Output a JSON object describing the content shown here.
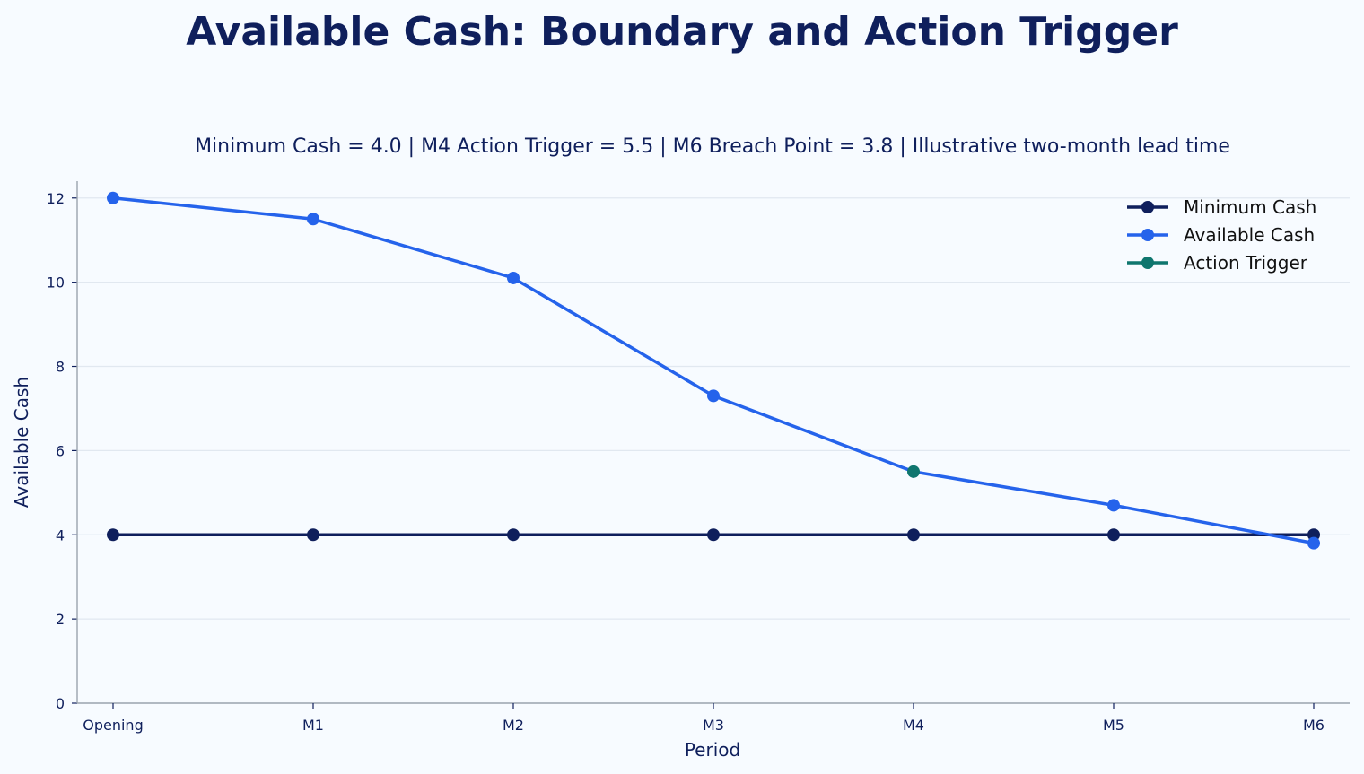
{
  "chart_data": {
    "type": "line",
    "title": "Available Cash: Boundary and Action Trigger",
    "subtitle": "Minimum Cash = 4.0 | M4 Action Trigger = 5.5 | M6 Breach Point = 3.8 | Illustrative two-month lead time",
    "xlabel": "Period",
    "ylabel": "Available Cash",
    "categories": [
      "Opening",
      "M1",
      "M2",
      "M3",
      "M4",
      "M5",
      "M6"
    ],
    "ylim": [
      0,
      12.4
    ],
    "yticks": [
      0,
      2,
      4,
      6,
      8,
      10,
      12
    ],
    "ytick_labels": [
      "0",
      "2",
      "4",
      "6",
      "8",
      "10",
      "12"
    ],
    "grid": "horizontal",
    "legend_position": "top-right",
    "series": [
      {
        "name": "Minimum Cash",
        "color": "#0f1f5c",
        "values": [
          4.0,
          4.0,
          4.0,
          4.0,
          4.0,
          4.0,
          4.0
        ]
      },
      {
        "name": "Available Cash",
        "color": "#2563eb",
        "values": [
          12.0,
          11.5,
          10.1,
          7.3,
          5.5,
          4.7,
          3.8
        ]
      },
      {
        "name": "Action Trigger",
        "color": "#0f766e",
        "points": [
          {
            "category": "M4",
            "value": 5.5
          }
        ]
      }
    ]
  }
}
